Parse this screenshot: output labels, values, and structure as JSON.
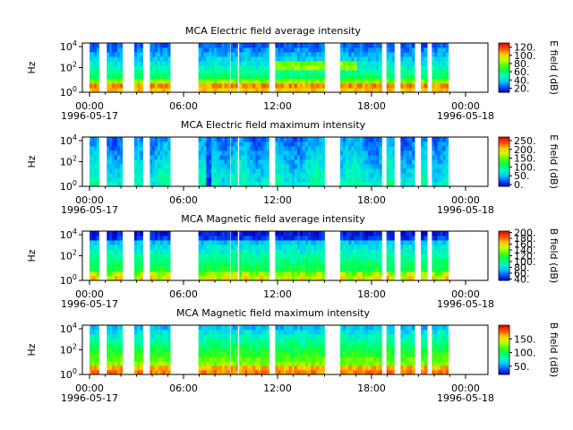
{
  "figure": {
    "colorbar_rainbow": [
      "#0000c8",
      "#0050ff",
      "#00c8ff",
      "#00ffb4",
      "#00ff50",
      "#50ff00",
      "#c8ff00",
      "#ffc800",
      "#ff5000",
      "#e60000"
    ],
    "colors": {
      "no_data": "#ffffff",
      "axis": "#000000"
    }
  },
  "chart_data": [
    {
      "type": "heatmap",
      "title": "MCA  Electric field average intensity",
      "ylabel": "Hz",
      "yscale": "log",
      "yticks": [
        "10^0",
        "10^2",
        "10^4"
      ],
      "xticks": [
        {
          "label": "00:00",
          "sublabel": "1996-05-17"
        },
        {
          "label": "06:00",
          "sublabel": ""
        },
        {
          "label": "12:00",
          "sublabel": ""
        },
        {
          "label": "18:00",
          "sublabel": ""
        },
        {
          "label": "00:00",
          "sublabel": "1996-05-18"
        }
      ],
      "xlim": [
        "1996-05-17 00:00",
        "1996-05-18 00:00"
      ],
      "data_coverage_hours": [
        [
          0.0,
          0.6
        ],
        [
          1.1,
          2.1
        ],
        [
          2.85,
          3.4
        ],
        [
          3.85,
          5.15
        ],
        [
          6.95,
          8.95
        ],
        [
          9.0,
          9.45
        ],
        [
          9.55,
          11.45
        ],
        [
          11.85,
          15.0
        ],
        [
          16.0,
          18.65
        ],
        [
          18.95,
          19.45
        ],
        [
          19.85,
          20.75
        ],
        [
          21.15,
          21.55
        ],
        [
          21.85,
          22.9
        ]
      ],
      "colorbar": {
        "label": "E field (dB)",
        "ticks": [
          "20.",
          "40.",
          "60.",
          "80.",
          "100.",
          "120."
        ],
        "range": [
          10,
          130
        ]
      },
      "spectrum_style": "avg_e"
    },
    {
      "type": "heatmap",
      "title": "MCA  Electric field maximum intensity",
      "ylabel": "Hz",
      "yscale": "log",
      "yticks": [
        "10^0",
        "10^2",
        "10^4"
      ],
      "xticks": [
        {
          "label": "00:00",
          "sublabel": "1996-05-17"
        },
        {
          "label": "06:00",
          "sublabel": ""
        },
        {
          "label": "12:00",
          "sublabel": ""
        },
        {
          "label": "18:00",
          "sublabel": ""
        },
        {
          "label": "00:00",
          "sublabel": "1996-05-18"
        }
      ],
      "xlim": [
        "1996-05-17 00:00",
        "1996-05-18 00:00"
      ],
      "data_coverage_hours": [
        [
          0.0,
          0.6
        ],
        [
          1.1,
          2.1
        ],
        [
          2.85,
          3.4
        ],
        [
          3.85,
          5.15
        ],
        [
          6.95,
          8.95
        ],
        [
          9.0,
          9.45
        ],
        [
          9.55,
          11.45
        ],
        [
          11.85,
          15.0
        ],
        [
          16.0,
          18.65
        ],
        [
          18.95,
          19.45
        ],
        [
          19.85,
          20.75
        ],
        [
          21.15,
          21.55
        ],
        [
          21.85,
          22.9
        ]
      ],
      "colorbar": {
        "label": "E field (dB)",
        "ticks": [
          "0.",
          "50.",
          "100.",
          "150.",
          "200.",
          "250."
        ],
        "range": [
          -10,
          270
        ]
      },
      "spectrum_style": "max_e"
    },
    {
      "type": "heatmap",
      "title": "MCA  Magnetic field average intensity",
      "ylabel": "Hz",
      "yscale": "log",
      "yticks": [
        "10^0",
        "10^2",
        "10^4"
      ],
      "xticks": [
        {
          "label": "00:00",
          "sublabel": "1996-05-17"
        },
        {
          "label": "06:00",
          "sublabel": ""
        },
        {
          "label": "12:00",
          "sublabel": ""
        },
        {
          "label": "18:00",
          "sublabel": ""
        },
        {
          "label": "00:00",
          "sublabel": "1996-05-18"
        }
      ],
      "xlim": [
        "1996-05-17 00:00",
        "1996-05-18 00:00"
      ],
      "data_coverage_hours": [
        [
          0.0,
          0.6
        ],
        [
          1.1,
          2.1
        ],
        [
          2.85,
          3.4
        ],
        [
          3.85,
          5.15
        ],
        [
          6.95,
          8.95
        ],
        [
          9.0,
          9.45
        ],
        [
          9.55,
          11.45
        ],
        [
          11.85,
          15.0
        ],
        [
          16.0,
          18.65
        ],
        [
          18.95,
          19.45
        ],
        [
          19.85,
          20.75
        ],
        [
          21.15,
          21.55
        ],
        [
          21.85,
          22.9
        ]
      ],
      "colorbar": {
        "label": "B field (dB)",
        "ticks": [
          "40.",
          "60.",
          "80.",
          "100.",
          "120.",
          "140.",
          "160.",
          "180.",
          "200."
        ],
        "range": [
          35,
          205
        ]
      },
      "spectrum_style": "avg_b"
    },
    {
      "type": "heatmap",
      "title": "MCA  Magnetic field maximum intensity",
      "ylabel": "Hz",
      "yscale": "log",
      "yticks": [
        "10^0",
        "10^2",
        "10^4"
      ],
      "xticks": [
        {
          "label": "00:00",
          "sublabel": "1996-05-17"
        },
        {
          "label": "06:00",
          "sublabel": ""
        },
        {
          "label": "12:00",
          "sublabel": ""
        },
        {
          "label": "18:00",
          "sublabel": ""
        },
        {
          "label": "00:00",
          "sublabel": "1996-05-18"
        }
      ],
      "xlim": [
        "1996-05-17 00:00",
        "1996-05-18 00:00"
      ],
      "data_coverage_hours": [
        [
          0.0,
          0.6
        ],
        [
          1.1,
          2.1
        ],
        [
          2.85,
          3.4
        ],
        [
          3.85,
          5.15
        ],
        [
          6.95,
          8.95
        ],
        [
          9.0,
          9.45
        ],
        [
          9.55,
          11.45
        ],
        [
          11.85,
          15.0
        ],
        [
          16.0,
          18.65
        ],
        [
          18.95,
          19.45
        ],
        [
          19.85,
          20.75
        ],
        [
          21.15,
          21.55
        ],
        [
          21.85,
          22.9
        ]
      ],
      "colorbar": {
        "label": "B field (dB)",
        "ticks": [
          "50.",
          "100.",
          "150."
        ],
        "range": [
          20,
          200
        ]
      },
      "spectrum_style": "max_b"
    }
  ]
}
